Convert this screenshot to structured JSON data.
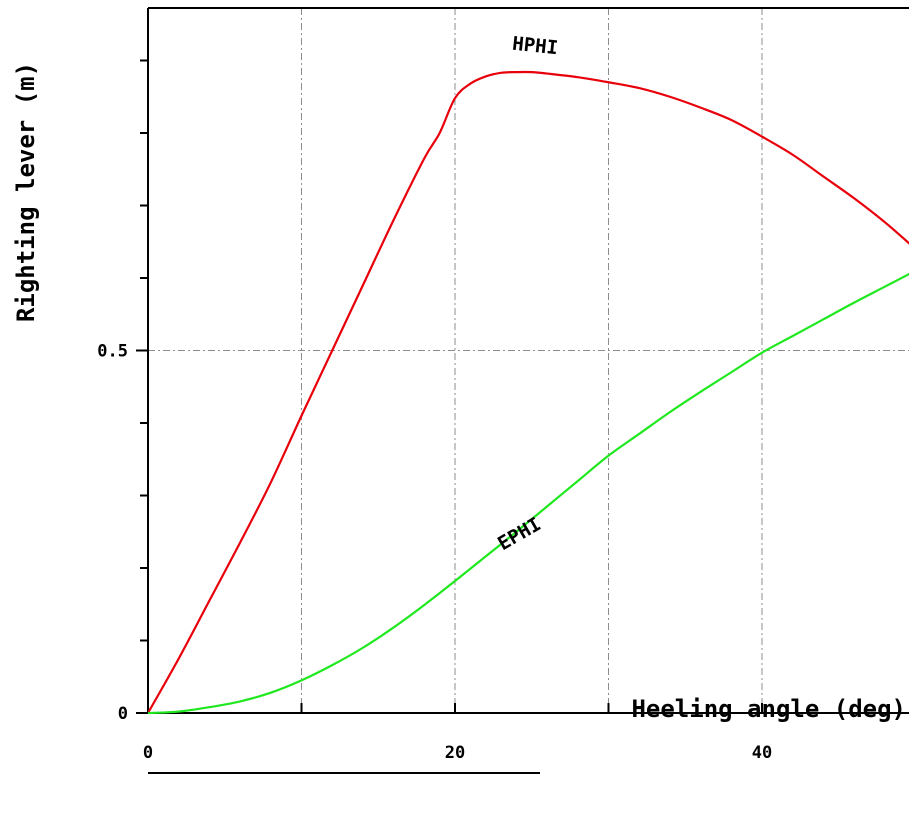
{
  "chart_data": {
    "type": "line",
    "xlabel": "Heeling angle (deg)",
    "ylabel": "Righting lever (m)",
    "xlim": [
      0,
      50
    ],
    "ylim": [
      0,
      0.98
    ],
    "x_major_ticks": [
      0,
      20,
      40
    ],
    "x_minor_ticks": [
      10,
      30,
      50
    ],
    "x_tick_labels": [
      "0",
      "20",
      "40"
    ],
    "y_major_ticks": [
      0,
      0.5
    ],
    "y_minor_ticks": [
      0.1,
      0.2,
      0.3,
      0.4,
      0.6,
      0.7,
      0.8,
      0.9
    ],
    "y_tick_labels": [
      "0",
      "0.5"
    ],
    "grid": true,
    "series": [
      {
        "name": "HPHI",
        "color": "#e8000b",
        "x": [
          0,
          2,
          4,
          6,
          8,
          10,
          12,
          14,
          16,
          18,
          19,
          20,
          21,
          22,
          23,
          24,
          25,
          26,
          28,
          30,
          32,
          34,
          36,
          38,
          40,
          42,
          44,
          46,
          48,
          50
        ],
        "y": [
          0,
          0.075,
          0.155,
          0.235,
          0.318,
          0.41,
          0.5,
          0.59,
          0.68,
          0.765,
          0.8,
          0.848,
          0.868,
          0.878,
          0.883,
          0.884,
          0.884,
          0.882,
          0.877,
          0.87,
          0.862,
          0.85,
          0.835,
          0.818,
          0.795,
          0.77,
          0.74,
          0.71,
          0.677,
          0.64
        ]
      },
      {
        "name": "EPHI",
        "color": "#1fe81f",
        "x": [
          0,
          2,
          4,
          6,
          8,
          10,
          12,
          14,
          16,
          18,
          20,
          22,
          24,
          26,
          28,
          30,
          32,
          34,
          36,
          38,
          40,
          42,
          44,
          46,
          48,
          50
        ],
        "y": [
          0,
          0.002,
          0.008,
          0.016,
          0.028,
          0.045,
          0.066,
          0.09,
          0.118,
          0.149,
          0.182,
          0.216,
          0.25,
          0.285,
          0.32,
          0.355,
          0.385,
          0.415,
          0.443,
          0.47,
          0.497,
          0.52,
          0.543,
          0.566,
          0.588,
          0.61
        ]
      }
    ]
  }
}
